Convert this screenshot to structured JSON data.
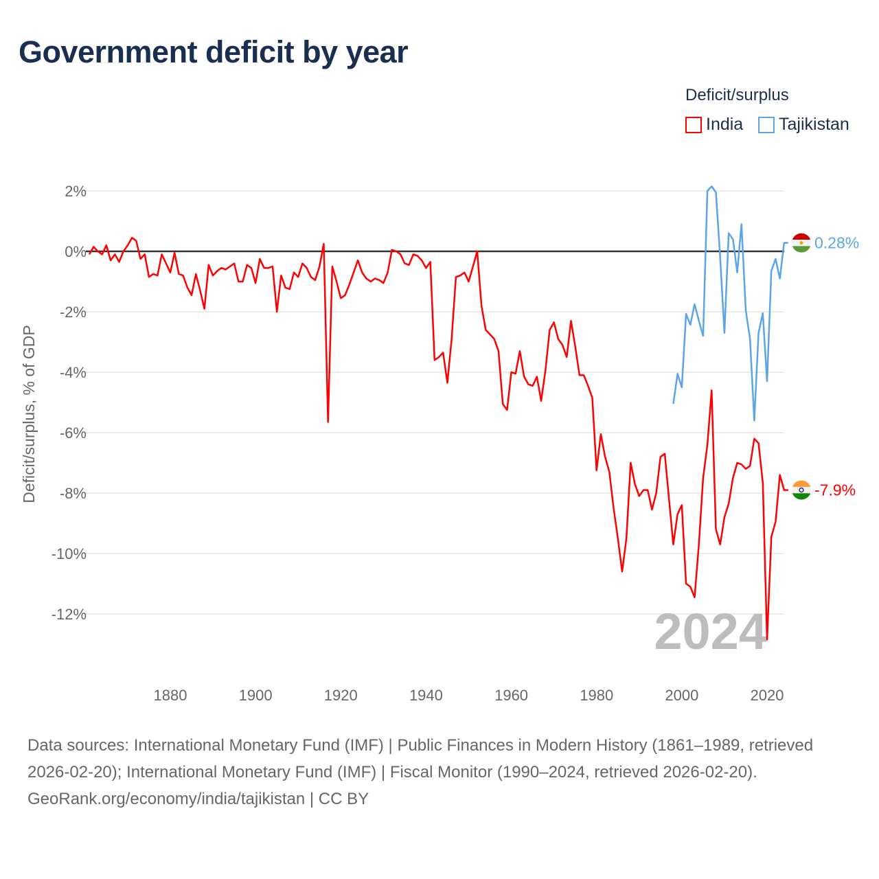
{
  "title": "Government deficit by year",
  "legend": {
    "title": "Deficit/surplus",
    "items": [
      {
        "label": "India",
        "color": "#ff0000"
      },
      {
        "label": "Tajikistan",
        "color": "#5ba4e8"
      }
    ]
  },
  "footer": {
    "sources": "Data sources: International Monetary Fund (IMF) | Public Finances in Modern History (1861–1989, retrieved 2026-02-20); International Monetary Fund (IMF) | Fiscal Monitor (1990–2024, retrieved 2026-02-20).",
    "credit": "GeoRank.org/economy/india/tajikistan | CC BY"
  },
  "chart_data": {
    "type": "line",
    "title": "Government deficit by year",
    "xlabel": "",
    "ylabel": "Deficit/surplus, % of GDP",
    "xlim": [
      1861,
      2024
    ],
    "ylim": [
      -13.6,
      2.6
    ],
    "x_ticks": [
      1880,
      1900,
      1920,
      1940,
      1960,
      1980,
      2000,
      2020
    ],
    "x_tick_labels": [
      "1880",
      "1900",
      "1920",
      "1940",
      "1960",
      "1980",
      "2000",
      "2020"
    ],
    "y_ticks": [
      2,
      0,
      -2,
      -4,
      -6,
      -8,
      -10,
      -12
    ],
    "y_tick_labels": [
      "2%",
      "0%",
      "-2%",
      "-4%",
      "-6%",
      "-8%",
      "-10%",
      "-12%"
    ],
    "grid": true,
    "legend_position": "top-right",
    "year_watermark": "2024",
    "series": [
      {
        "name": "India",
        "color": "#ff0000",
        "start_year": 1861,
        "end_label": "-7.9%",
        "values": [
          -0.1,
          0.15,
          0,
          -0.1,
          0.2,
          -0.3,
          -0.1,
          -0.35,
          0,
          0.2,
          0.45,
          0.35,
          -0.25,
          -0.1,
          -0.85,
          -0.75,
          -0.8,
          -0.1,
          -0.4,
          -0.7,
          -0.05,
          -0.75,
          -0.8,
          -1.2,
          -1.45,
          -0.75,
          -1.3,
          -1.9,
          -0.45,
          -0.8,
          -0.65,
          -0.55,
          -0.6,
          -0.5,
          -0.4,
          -1.0,
          -1.0,
          -0.45,
          -0.55,
          -1.05,
          -0.25,
          -0.55,
          -0.55,
          -0.5,
          -2.0,
          -0.8,
          -1.2,
          -1.25,
          -0.7,
          -0.85,
          -0.4,
          -0.55,
          -0.85,
          -0.95,
          -0.5,
          0.25,
          -5.65,
          -0.5,
          -1.0,
          -1.55,
          -1.45,
          -1.1,
          -0.7,
          -0.3,
          -0.7,
          -0.9,
          -1.0,
          -0.9,
          -0.95,
          -1.05,
          -0.7,
          0.05,
          0,
          -0.1,
          -0.4,
          -0.45,
          -0.1,
          -0.15,
          -0.3,
          -0.55,
          -0.35,
          -3.6,
          -3.5,
          -3.35,
          -4.35,
          -2.9,
          -0.85,
          -0.8,
          -0.7,
          -1.0,
          -0.5,
          0,
          -1.8,
          -2.6,
          -2.75,
          -2.9,
          -3.3,
          -5.05,
          -5.25,
          -4.0,
          -4.05,
          -3.3,
          -4.15,
          -4.4,
          -4.45,
          -4.15,
          -4.95,
          -3.95,
          -2.6,
          -2.35,
          -2.9,
          -3.1,
          -3.5,
          -2.3,
          -3.15,
          -4.1,
          -4.1,
          -4.45,
          -4.85,
          -7.25,
          -6.05,
          -6.8,
          -7.3,
          -8.5,
          -9.5,
          -10.6,
          -9.5,
          -7.0,
          -7.7,
          -8.1,
          -7.9,
          -7.9,
          -8.55,
          -8.0,
          -6.8,
          -6.7,
          -8.2,
          -9.7,
          -8.7,
          -8.4,
          -11.0,
          -11.1,
          -11.45,
          -9.7,
          -7.5,
          -6.4,
          -4.6,
          -9.2,
          -9.7,
          -8.8,
          -8.35,
          -7.5,
          -7.0,
          -7.05,
          -7.2,
          -7.1,
          -6.2,
          -6.35,
          -7.65,
          -12.85,
          -9.45,
          -8.95,
          -7.4,
          -7.9
        ]
      },
      {
        "name": "Tajikistan",
        "color": "#5ba4e8",
        "start_year": 1998,
        "end_label": "0.28%",
        "values": [
          -5.05,
          -4.05,
          -4.5,
          -2.07,
          -2.43,
          -1.75,
          -2.3,
          -2.8,
          2.0,
          2.15,
          1.95,
          -0.2,
          -2.7,
          0.6,
          0.4,
          -0.7,
          0.9,
          -1.95,
          -2.9,
          -5.6,
          -2.7,
          -2.05,
          -4.3,
          -0.65,
          -0.25,
          -0.9,
          0.28
        ]
      }
    ]
  }
}
